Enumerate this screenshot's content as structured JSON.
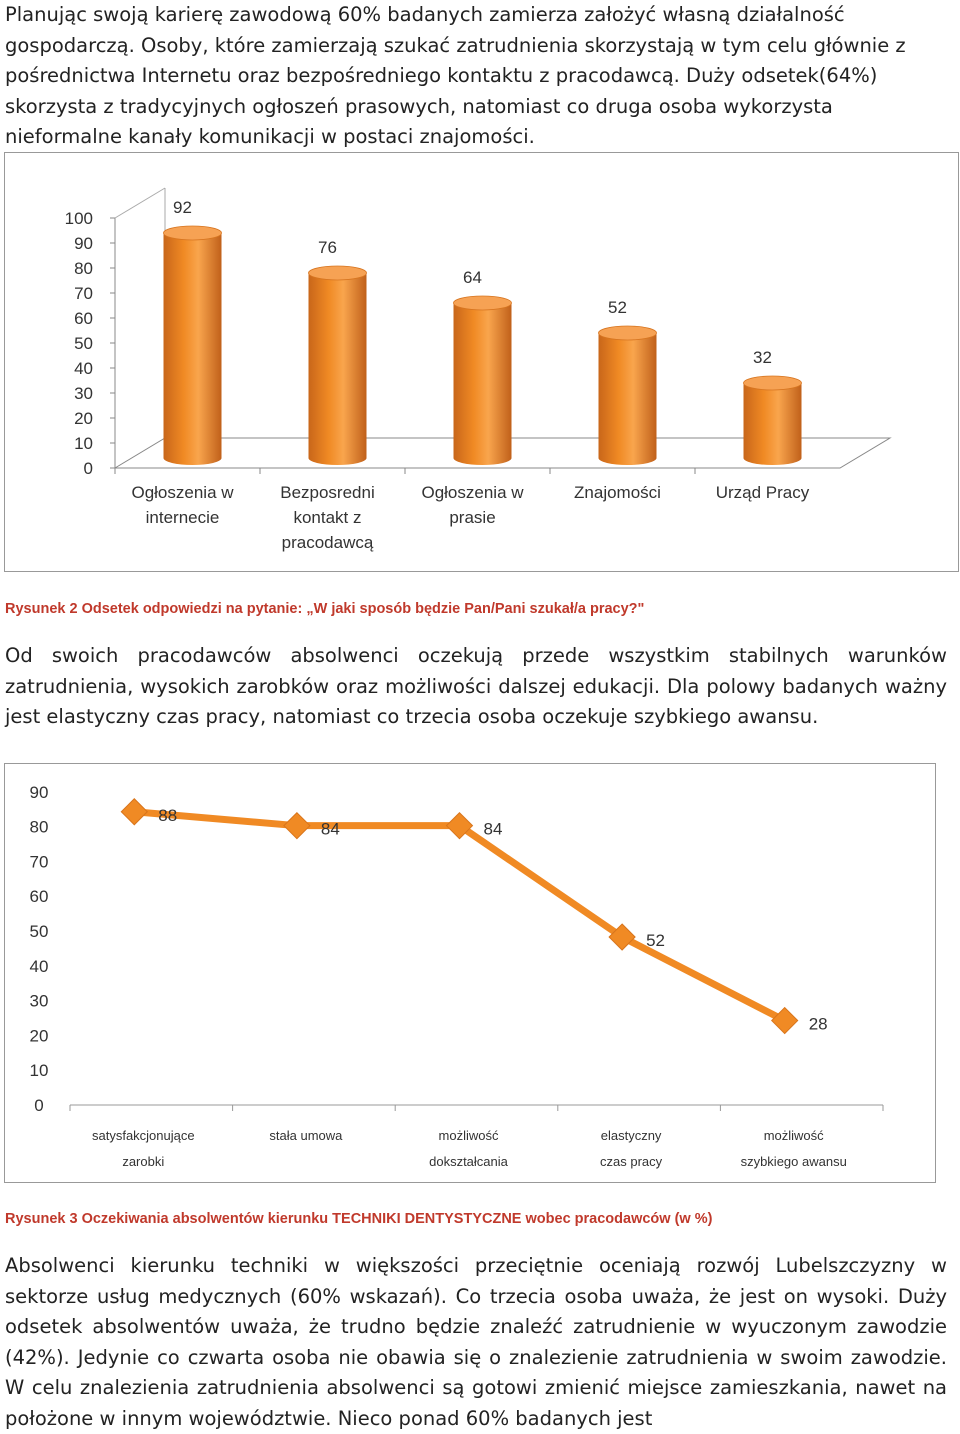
{
  "paragraphs": {
    "p1": "Planując swoją karierę zawodową 60% badanych zamierza założyć własną działalność gospodarczą. Osoby, które zamierzają szukać zatrudnienia skorzystają w tym celu głównie z pośrednictwa Internetu oraz bezpośredniego kontaktu z pracodawcą. Duży odsetek(64%) skorzysta z tradycyjnych ogłoszeń prasowych, natomiast co druga osoba wykorzysta nieformalne kanały komunikacji w postaci znajomości.",
    "p2": "Od swoich pracodawców absolwenci oczekują przede wszystkim stabilnych warunków zatrudnienia, wysokich zarobków oraz możliwości dalszej edukacji. Dla polowy badanych ważny jest elastyczny czas pracy, natomiast co trzecia osoba oczekuje szybkiego awansu.",
    "p3": "Absolwenci kierunku techniki w większości przeciętnie oceniają rozwój Lubelszczyzny w sektorze usług medycznych (60% wskazań). Co trzecia osoba uważa, że jest on wysoki. Duży odsetek absolwentów uważa, że trudno będzie znaleźć zatrudnienie w wyuczonym zawodzie (42%). Jedynie co czwarta osoba nie obawia się o znalezienie zatrudnienia w swoim zawodzie. W celu znalezienia zatrudnienia absolwenci są gotowi zmienić miejsce zamieszkania, nawet na położone w innym województwie. Nieco ponad 60% badanych jest"
  },
  "captions": {
    "fig2": "Rysunek 2 Odsetek odpowiedzi na pytanie: „W jaki sposób będzie Pan/Pani szukał/a pracy?\"",
    "fig3": "Rysunek 3 Oczekiwania absolwentów kierunku TECHNIKI DENTYSTYCZNE wobec pracodawców (w %)"
  },
  "chart_data": [
    {
      "type": "bar",
      "title": "",
      "categories": [
        [
          "Ogłoszenia w",
          "internecie"
        ],
        [
          "Bezposredni",
          "kontakt z",
          "pracodawcą"
        ],
        [
          "Ogłoszenia w",
          "prasie"
        ],
        [
          "Znajomości"
        ],
        [
          "Urząd Pracy"
        ]
      ],
      "values": [
        92,
        76,
        64,
        52,
        32
      ],
      "ylim": [
        0,
        100
      ],
      "yticks": [
        0,
        10,
        20,
        30,
        40,
        50,
        60,
        70,
        80,
        90,
        100
      ],
      "color": "#f08a24",
      "legend": "none"
    },
    {
      "type": "line",
      "title": "",
      "categories": [
        [
          "satysfakcjonujące",
          "zarobki"
        ],
        [
          "stała umowa"
        ],
        [
          "możliwość",
          "dokształcania"
        ],
        [
          "elastyczny",
          "czas pracy"
        ],
        [
          "możliwość",
          "szybkiego awansu"
        ]
      ],
      "values": [
        88,
        84,
        84,
        52,
        28
      ],
      "ylim": [
        0,
        100
      ],
      "yticks": [
        0,
        10,
        20,
        30,
        40,
        50,
        60,
        70,
        80,
        90,
        100
      ],
      "color": "#f08a24",
      "legend": "none"
    }
  ]
}
